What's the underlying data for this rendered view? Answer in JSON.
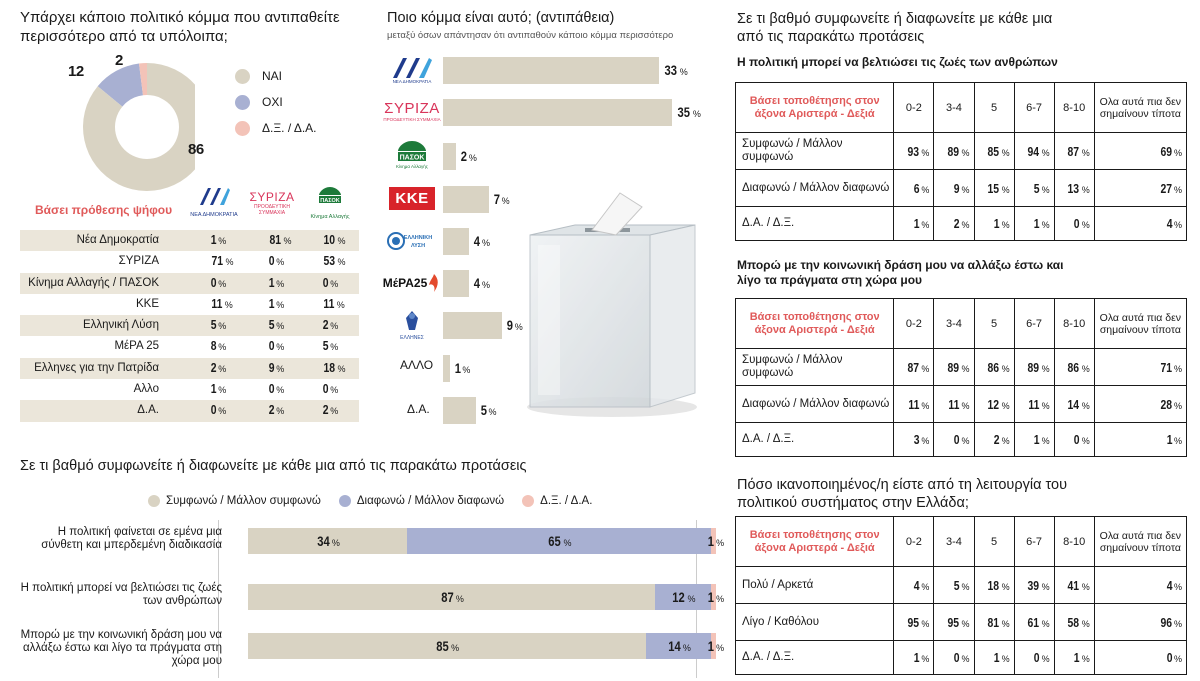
{
  "q1": {
    "title": "Υπάρχει κάποιο πολιτικό κόμμα που αντιπαθείτε περισσότερο από τα υπόλοιπα;",
    "labels": [
      "ΝΑΙ",
      "ΟΧΙ",
      "Δ.Ξ. / Δ.Α."
    ],
    "values": [
      86,
      12,
      2
    ],
    "value_text": [
      "86",
      "12",
      "2"
    ],
    "colors": [
      "#d9d3c3",
      "#a8b0d2",
      "#f3c3b8"
    ]
  },
  "vote": {
    "title": "Βάσει πρόθεσης ψήφου",
    "logos": [
      "ΝΔ",
      "ΣΥΡΙΖΑ",
      "ΠΑΣΟΚ"
    ],
    "logo_sub": [
      "ΝΕΑ ΔΗΜΟΚΡΑΤΙΑ",
      "ΠΡΟΟΔΕΥΤΙΚΗ ΣΥΜΜΑΧΙΑ",
      "Κίνημα Αλλαγής"
    ],
    "pct_sign": "%",
    "rows": [
      {
        "label": "Νέα Δημοκρατία",
        "values": [
          "1",
          "81",
          "10"
        ]
      },
      {
        "label": "ΣΥΡΙΖΑ",
        "values": [
          "71",
          "0",
          "53"
        ]
      },
      {
        "label": "Κίνημα Αλλαγής / ΠΑΣΟΚ",
        "values": [
          "0",
          "1",
          "0"
        ]
      },
      {
        "label": "ΚΚΕ",
        "values": [
          "11",
          "1",
          "11"
        ]
      },
      {
        "label": "Ελληνική Λύση",
        "values": [
          "5",
          "5",
          "2"
        ]
      },
      {
        "label": "ΜέΡΑ 25",
        "values": [
          "8",
          "0",
          "5"
        ]
      },
      {
        "label": "Ελληνες για την Πατρίδα",
        "values": [
          "2",
          "9",
          "18"
        ]
      },
      {
        "label": "Αλλο",
        "values": [
          "1",
          "0",
          "0"
        ]
      },
      {
        "label": "Δ.Α.",
        "values": [
          "0",
          "2",
          "2"
        ]
      }
    ]
  },
  "q2": {
    "title": "Ποιο κόμμα είναι αυτό; (αντιπάθεια)",
    "subtitle": "μεταξύ όσων απάντησαν ότι αντιπαθούν κάποιο κόμμα περισσότερο",
    "logo_texts": [
      "ΝΔ",
      "ΣΥΡΙΖΑ",
      "ΠΑΣΟΚ",
      "ΚΚΕ",
      "ΕΛΛΗΝΙΚΗ ΛΥΣΗ",
      "ΜέΡΑ25",
      "ΕΛΛΗΝΕΣ"
    ],
    "other_labels": [
      "ΑΛΛΟ",
      "Δ.Α."
    ]
  },
  "q3": {
    "title": "Σε τι βαθμό συμφωνείτε ή διαφωνείτε με κάθε μια από τις παρακάτω προτάσεις",
    "legend": [
      "Συμφωνώ / Μάλλον συμφωνώ",
      "Διαφωνώ / Μάλλον διαφωνώ",
      "Δ.Ξ. / Δ.Α."
    ],
    "colors": [
      "#d9d3c3",
      "#a8b0d2",
      "#f3c3b8"
    ],
    "rows": [
      {
        "label": "Η πολιτική φαίνεται σε εμένα μια σύνθετη και μπερδεμένη διαδικασία",
        "values": [
          34,
          65,
          1
        ]
      },
      {
        "label": "Η πολιτική μπορεί να βελτιώσει τις ζωές των ανθρώπων",
        "values": [
          87,
          12,
          1
        ]
      },
      {
        "label": "Μπορώ με την κοινωνική δράση μου να αλλάξω έστω και λίγο τα πράγματα στη χώρα μου",
        "values": [
          85,
          14,
          1
        ]
      }
    ]
  },
  "right": {
    "title": "Σε τι βαθμό συμφωνείτε ή διαφωνείτε με κάθε μια από τις παρακάτω προτάσεις",
    "axis_header": "Βάσει τοποθέτησης στον άξονα Αριστερά - Δεξιά",
    "cols": [
      "0-2",
      "3-4",
      "5",
      "6-7",
      "8-10",
      "Ολα αυτά πια δεν σημαίνουν τίποτα"
    ],
    "t1": {
      "subtitle": "Η πολιτική μπορεί να βελτιώσει τις ζωές των ανθρώπων",
      "rows": [
        {
          "label": "Συμφωνώ / Μάλλον συμφωνώ",
          "values": [
            "93",
            "89",
            "85",
            "94",
            "87",
            "69"
          ]
        },
        {
          "label": "Διαφωνώ / Μάλλον διαφωνώ",
          "values": [
            "6",
            "9",
            "15",
            "5",
            "13",
            "27"
          ]
        },
        {
          "label": "Δ.Α. / Δ.Ξ.",
          "values": [
            "1",
            "2",
            "1",
            "1",
            "0",
            "4"
          ]
        }
      ]
    },
    "t2": {
      "subtitle": "Μπορώ με την κοινωνική δράση μου να αλλάξω έστω και λίγο τα πράγματα στη χώρα μου",
      "rows": [
        {
          "label": "Συμφωνώ / Μάλλον συμφωνώ",
          "values": [
            "87",
            "89",
            "86",
            "89",
            "86",
            "71"
          ]
        },
        {
          "label": "Διαφωνώ / Μάλλον διαφωνώ",
          "values": [
            "11",
            "11",
            "12",
            "11",
            "14",
            "28"
          ]
        },
        {
          "label": "Δ.Α. / Δ.Ξ.",
          "values": [
            "3",
            "0",
            "2",
            "1",
            "0",
            "1"
          ]
        }
      ]
    },
    "t3": {
      "title": "Πόσο ικανοποιημένος/η είστε από τη λειτουργία του πολιτικού συστήματος στην Ελλάδα;",
      "rows": [
        {
          "label": "Πολύ / Αρκετά",
          "values": [
            "4",
            "5",
            "18",
            "39",
            "41",
            "4"
          ]
        },
        {
          "label": "Λίγο / Καθόλου",
          "values": [
            "95",
            "95",
            "81",
            "61",
            "58",
            "96"
          ]
        },
        {
          "label": "Δ.Α. / Δ.Ξ.",
          "values": [
            "1",
            "0",
            "1",
            "0",
            "1",
            "0"
          ]
        }
      ]
    }
  },
  "chart_data": [
    {
      "type": "pie",
      "title": "Υπάρχει κάποιο πολιτικό κόμμα που αντιπαθείτε περισσότερο από τα υπόλοιπα;",
      "categories": [
        "ΝΑΙ",
        "ΟΧΙ",
        "Δ.Ξ. / Δ.Α."
      ],
      "values": [
        86,
        12,
        2
      ]
    },
    {
      "type": "bar",
      "title": "Ποιο κόμμα είναι αυτό; (αντιπάθεια)",
      "subtitle": "μεταξύ όσων απάντησαν ότι αντιπαθούν κάποιο κόμμα περισσότερο",
      "categories": [
        "ΝΔ",
        "ΣΥΡΙΖΑ",
        "ΠΑΣΟΚ",
        "ΚΚΕ",
        "ΕΛΛΗΝΙΚΗ ΛΥΣΗ",
        "ΜέΡΑ25",
        "ΕΛΛΗΝΕΣ",
        "ΑΛΛΟ",
        "Δ.Α."
      ],
      "values": [
        33,
        35,
        2,
        7,
        4,
        4,
        9,
        1,
        5
      ],
      "value_labels": [
        "33",
        "35",
        "2",
        "7",
        "4",
        "4",
        "9",
        "1",
        "5"
      ],
      "unit": "%",
      "orientation": "horizontal",
      "color": "#d9d3c3"
    },
    {
      "type": "bar",
      "stacked": true,
      "orientation": "horizontal",
      "title": "Σε τι βαθμό συμφωνείτε ή διαφωνείτε με κάθε μια από τις παρακάτω προτάσεις",
      "categories": [
        "Η πολιτική φαίνεται σε εμένα μια σύνθετη και μπερδεμένη διαδικασία",
        "Η πολιτική μπορεί να βελτιώσει τις ζωές των ανθρώπων",
        "Μπορώ με την κοινωνική δράση μου να αλλάξω έστω και λίγο τα πράγματα στη χώρα μου"
      ],
      "series": [
        {
          "name": "Συμφωνώ / Μάλλον συμφωνώ",
          "values": [
            34,
            87,
            85
          ]
        },
        {
          "name": "Διαφωνώ / Μάλλον διαφωνώ",
          "values": [
            65,
            12,
            14
          ]
        },
        {
          "name": "Δ.Ξ. / Δ.Α.",
          "values": [
            1,
            1,
            1
          ]
        }
      ]
    }
  ]
}
